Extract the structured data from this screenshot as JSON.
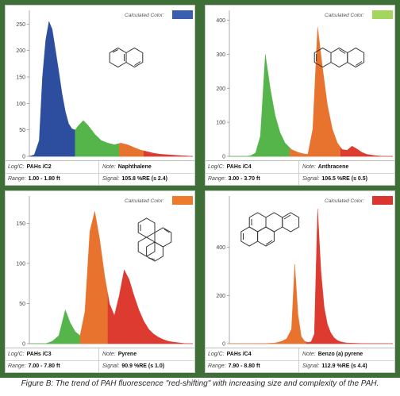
{
  "figure": {
    "caption": "Figure B: The trend of PAH fluorescence \"red-shifting\" with increasing size and complexity of the PAH."
  },
  "labels": {
    "calculated_color": "Calculated Color:",
    "log_c": "Log/C:",
    "note": "Note:",
    "range": "Range:",
    "signal": "Signal:"
  },
  "colors": {
    "blue": "#2d4e9e",
    "green": "#55b54a",
    "orange": "#e8732e",
    "red": "#dd3a30"
  },
  "panels": [
    {
      "log_c": "PAHs /C2",
      "note": "Naphthalene",
      "range": "1.00 - 1.80 ft",
      "signal": "105.8 %RE (s 2.4)",
      "calculated_color": "#3a5fae",
      "molecule_icon": "naphthalene-structure-icon"
    },
    {
      "log_c": "PAHs /C4",
      "note": "Anthracene",
      "range": "3.00 - 3.70 ft",
      "signal": "106.5 %RE (s 0.5)",
      "calculated_color": "#a4d65e",
      "molecule_icon": "anthracene-structure-icon"
    },
    {
      "log_c": "PAHs /C3",
      "note": "Pyrene",
      "range": "7.00 - 7.80 ft",
      "signal": "90.9 %RE (s 1.0)",
      "calculated_color": "#ee7a2c",
      "molecule_icon": "pyrene-structure-icon"
    },
    {
      "log_c": "PAHs /C4",
      "note": "Benzo (a) pyrene",
      "range": "7.90 - 8.80 ft",
      "signal": "112.9 %RE (s 4.4)",
      "calculated_color": "#dc3530",
      "molecule_icon": "benzo-a-pyrene-structure-icon"
    }
  ],
  "chart_data": [
    {
      "type": "area",
      "title": "Naphthalene",
      "x": [
        0,
        3,
        6,
        8,
        10,
        12,
        14,
        16,
        18,
        20,
        22,
        24,
        26,
        28,
        30,
        33,
        36,
        40,
        44,
        48,
        52,
        56,
        60,
        64,
        68,
        72,
        76,
        80,
        85,
        90,
        95,
        100
      ],
      "ylim": [
        0,
        270
      ],
      "yticks": [
        0,
        50,
        100,
        150,
        200,
        250
      ],
      "series": [
        {
          "values": [
            0,
            3,
            30,
            150,
            220,
            255,
            240,
            200,
            160,
            118,
            85,
            62,
            52,
            50,
            58,
            68,
            58,
            42,
            30,
            25,
            22,
            25,
            22,
            17,
            12,
            9,
            6,
            4,
            3,
            2,
            1,
            0
          ]
        }
      ],
      "bands": [
        {
          "color": "#2d4e9e",
          "x0": 0,
          "x1": 28
        },
        {
          "color": "#55b54a",
          "x0": 28,
          "x1": 55
        },
        {
          "color": "#e8732e",
          "x0": 55,
          "x1": 70
        },
        {
          "color": "#dd3a30",
          "x0": 70,
          "x1": 100
        }
      ]
    },
    {
      "type": "area",
      "title": "Anthracene",
      "x": [
        0,
        5,
        10,
        13,
        16,
        19,
        22,
        25,
        28,
        31,
        34,
        38,
        42,
        45,
        48,
        51,
        54,
        57,
        60,
        63,
        66,
        69,
        72,
        75,
        78,
        81,
        84,
        88,
        92,
        96,
        100
      ],
      "ylim": [
        0,
        420
      ],
      "yticks": [
        0,
        100,
        200,
        300,
        400
      ],
      "series": [
        {
          "values": [
            0,
            0,
            0,
            2,
            10,
            60,
            300,
            200,
            120,
            70,
            40,
            20,
            12,
            8,
            6,
            80,
            380,
            260,
            150,
            80,
            40,
            20,
            18,
            30,
            22,
            12,
            6,
            3,
            1,
            0,
            0
          ]
        }
      ],
      "bands": [
        {
          "color": "#55b54a",
          "x0": 0,
          "x1": 37
        },
        {
          "color": "#e8732e",
          "x0": 37,
          "x1": 68
        },
        {
          "color": "#dd3a30",
          "x0": 68,
          "x1": 100
        }
      ]
    },
    {
      "type": "area",
      "title": "Pyrene",
      "x": [
        0,
        5,
        10,
        14,
        18,
        22,
        25,
        28,
        31,
        34,
        37,
        40,
        43,
        46,
        49,
        52,
        55,
        58,
        61,
        64,
        67,
        70,
        73,
        76,
        79,
        82,
        85,
        88,
        92,
        96,
        100
      ],
      "ylim": [
        0,
        180
      ],
      "yticks": [
        0,
        50,
        100,
        150
      ],
      "series": [
        {
          "values": [
            0,
            0,
            0,
            3,
            10,
            42,
            26,
            15,
            10,
            40,
            140,
            165,
            130,
            85,
            50,
            35,
            60,
            92,
            80,
            60,
            42,
            28,
            18,
            12,
            8,
            5,
            3,
            2,
            1,
            0,
            0
          ]
        }
      ],
      "bands": [
        {
          "color": "#55b54a",
          "x0": 0,
          "x1": 31
        },
        {
          "color": "#e8732e",
          "x0": 31,
          "x1": 48
        },
        {
          "color": "#dd3a30",
          "x0": 48,
          "x1": 100
        }
      ]
    },
    {
      "type": "area",
      "title": "Benzo (a) pyrene",
      "x": [
        0,
        10,
        20,
        28,
        32,
        35,
        38,
        40,
        42,
        44,
        46,
        48,
        50,
        52,
        54,
        56,
        58,
        60,
        62,
        64,
        66,
        68,
        70,
        72,
        76,
        80,
        85,
        90,
        95,
        100
      ],
      "ylim": [
        0,
        600
      ],
      "yticks": [
        0,
        200,
        400
      ],
      "series": [
        {
          "values": [
            0,
            0,
            0,
            3,
            10,
            20,
            60,
            330,
            120,
            30,
            10,
            5,
            8,
            40,
            560,
            300,
            150,
            80,
            45,
            25,
            14,
            8,
            5,
            3,
            2,
            1,
            0,
            0,
            0,
            0
          ]
        }
      ],
      "bands": [
        {
          "color": "#e8732e",
          "x0": 0,
          "x1": 47
        },
        {
          "color": "#dd3a30",
          "x0": 47,
          "x1": 100
        }
      ]
    }
  ]
}
